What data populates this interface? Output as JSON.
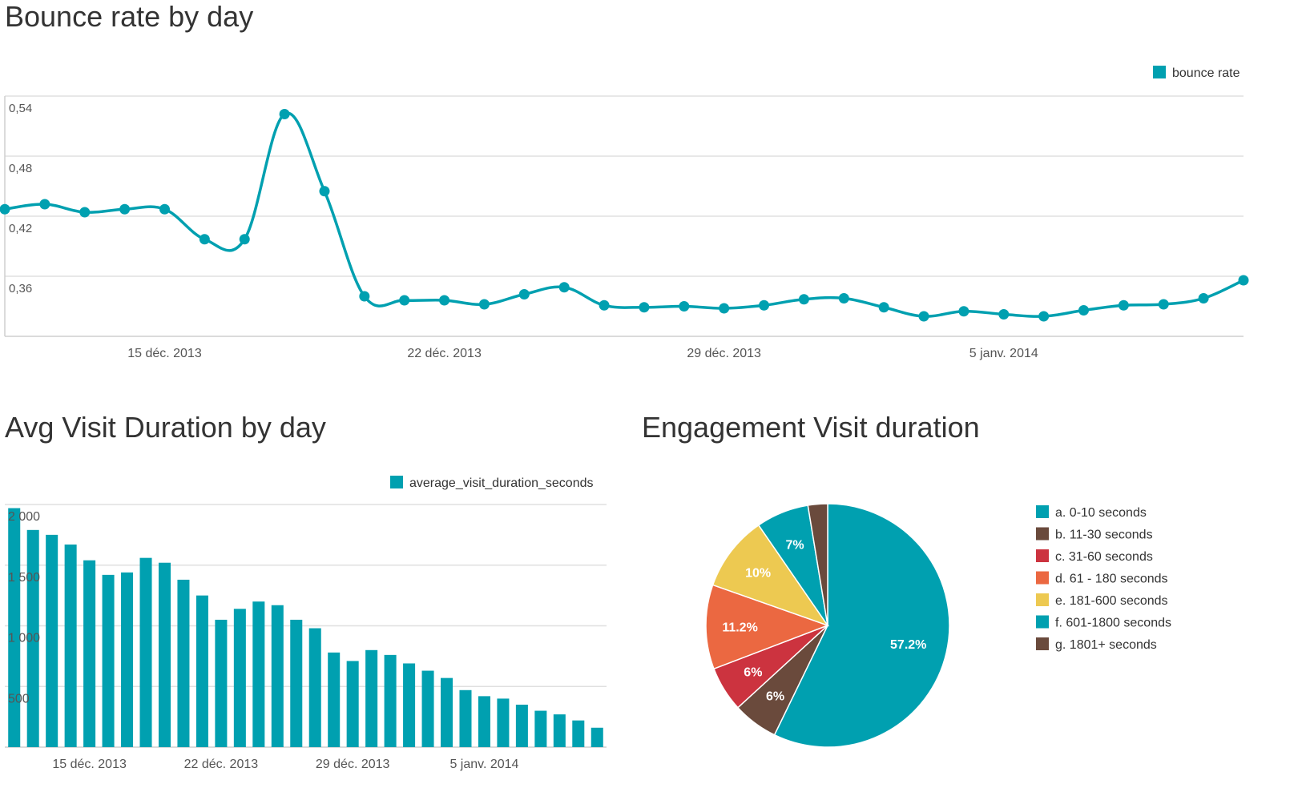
{
  "colors": {
    "teal": "#00a0b0",
    "brown": "#6a4a3c",
    "red": "#cc333f",
    "orange": "#eb6841",
    "yellow": "#edc951",
    "grid": "#e0e0e0",
    "axis_text": "#555555",
    "title_text": "#333333"
  },
  "chart_data": [
    {
      "type": "line",
      "title": "Bounce rate by day",
      "legend": {
        "label": "bounce rate",
        "position": "top-right"
      },
      "ylim": [
        0.3,
        0.54
      ],
      "y_ticks": [
        0.54,
        0.48,
        0.42,
        0.36
      ],
      "y_tick_labels": [
        "0,54",
        "0,48",
        "0,42",
        "0,36"
      ],
      "x_tick_labels": [
        "15 déc. 2013",
        "22 déc. 2013",
        "29 déc. 2013",
        "5 janv. 2014"
      ],
      "x_tick_index": [
        4,
        11,
        18,
        25
      ],
      "n_days": 32,
      "series": [
        {
          "name": "bounce rate",
          "values": [
            0.427,
            0.432,
            0.424,
            0.427,
            0.427,
            0.397,
            0.397,
            0.522,
            0.445,
            0.34,
            0.336,
            0.336,
            0.332,
            0.342,
            0.349,
            0.331,
            0.329,
            0.33,
            0.328,
            0.331,
            0.337,
            0.338,
            0.329,
            0.32,
            0.325,
            0.322,
            0.32,
            0.326,
            0.331,
            0.332,
            0.338,
            0.356
          ]
        }
      ]
    },
    {
      "type": "bar",
      "title": "Avg Visit Duration by day",
      "legend": {
        "label": "average_visit_duration_seconds",
        "position": "top-right"
      },
      "ylim": [
        0,
        2000
      ],
      "y_ticks": [
        2000,
        1500,
        1000,
        500
      ],
      "y_tick_labels": [
        "2 000",
        "1 500",
        "1 000",
        "500"
      ],
      "x_tick_labels": [
        "15 déc. 2013",
        "22 déc. 2013",
        "29 déc. 2013",
        "5 janv. 2014"
      ],
      "x_tick_index": [
        4,
        11,
        18,
        25
      ],
      "series": [
        {
          "name": "average_visit_duration_seconds",
          "values": [
            1970,
            1790,
            1750,
            1670,
            1540,
            1420,
            1440,
            1560,
            1520,
            1380,
            1250,
            1050,
            1140,
            1200,
            1170,
            1050,
            980,
            780,
            710,
            800,
            760,
            690,
            630,
            570,
            470,
            420,
            400,
            350,
            300,
            270,
            220,
            160
          ]
        }
      ]
    },
    {
      "type": "pie",
      "title": "Engagement Visit duration",
      "legend_position": "right",
      "slices": [
        {
          "label": "a. 0-10 seconds",
          "value": 57.2,
          "display": "57.2%",
          "color": "#00a0b0"
        },
        {
          "label": "b. 11-30 seconds",
          "value": 6.0,
          "display": "6%",
          "color": "#6a4a3c"
        },
        {
          "label": "c. 31-60 seconds",
          "value": 6.0,
          "display": "6%",
          "color": "#cc333f"
        },
        {
          "label": "d. 61 - 180 seconds",
          "value": 11.2,
          "display": "11.2%",
          "color": "#eb6841"
        },
        {
          "label": "e. 181-600 seconds",
          "value": 10.0,
          "display": "10%",
          "color": "#edc951"
        },
        {
          "label": "f. 601-1800 seconds",
          "value": 7.0,
          "display": "7%",
          "color": "#00a0b0"
        },
        {
          "label": "g. 1801+ seconds",
          "value": 2.6,
          "display": "",
          "color": "#6a4a3c"
        }
      ]
    }
  ]
}
